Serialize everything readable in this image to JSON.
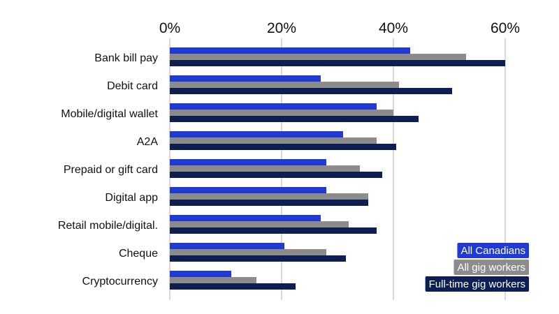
{
  "chart_data": {
    "type": "bar",
    "orientation": "horizontal",
    "title": "",
    "xlabel": "",
    "ylabel": "",
    "xlim": [
      0,
      60
    ],
    "x_ticks": [
      "0%",
      "20%",
      "40%",
      "60%"
    ],
    "grid": true,
    "legend_position": "bottom-right",
    "categories": [
      "Bank bill pay",
      "Debit card",
      "Mobile/digital wallet",
      "A2A",
      "Prepaid or gift card",
      "Digital app",
      "Retail mobile/digital.",
      "Cheque",
      "Cryptocurrency"
    ],
    "series": [
      {
        "name": "All Canadians",
        "color": "#1f3bd4",
        "values": [
          43,
          27,
          37,
          31,
          28,
          28,
          27,
          20.5,
          11
        ]
      },
      {
        "name": "All gig workers",
        "color": "#8c8c8c",
        "values": [
          53,
          41,
          40,
          37,
          34,
          35.5,
          32,
          28,
          15.5
        ]
      },
      {
        "name": "Full-time gig workers",
        "color": "#0d1f52",
        "values": [
          60,
          50.5,
          44.5,
          40.5,
          38,
          35.5,
          37,
          31.5,
          22.5
        ]
      }
    ]
  }
}
